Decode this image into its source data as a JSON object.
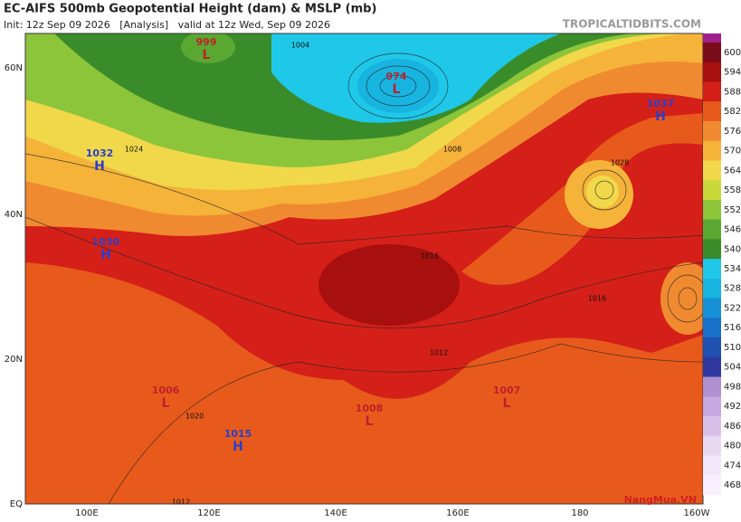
{
  "header": {
    "title": "EC-AIFS 500mb Geopotential Height (dam) & MSLP (mb)",
    "subtitle": "Init: 12z Sep 09 2026   [Analysis]   valid at 12z Wed, Sep 09 2026",
    "brand": "TROPICALTIDBITS.COM"
  },
  "map": {
    "lat_labels": [
      "60N",
      "40N",
      "20N",
      "EQ"
    ],
    "lon_labels": [
      "100E",
      "120E",
      "140E",
      "160E",
      "180",
      "160W"
    ],
    "centers": [
      {
        "value": "999",
        "letter": "L"
      },
      {
        "value": "974",
        "letter": "L"
      },
      {
        "value": "1037",
        "letter": "H"
      },
      {
        "value": "1032",
        "letter": "H"
      },
      {
        "value": "1030",
        "letter": "H"
      },
      {
        "value": "1006",
        "letter": "L"
      },
      {
        "value": "1008",
        "letter": "L"
      },
      {
        "value": "1007",
        "letter": "L"
      },
      {
        "value": "1015",
        "letter": "H"
      }
    ],
    "isobar_labels": [
      "1004",
      "1008",
      "1012",
      "1016",
      "1020",
      "1024",
      "1028",
      "1016",
      "1012"
    ]
  },
  "colorbar": {
    "top_color": "#a0208c",
    "labels": [
      600,
      594,
      588,
      582,
      576,
      570,
      564,
      558,
      552,
      546,
      540,
      534,
      528,
      522,
      516,
      510,
      504,
      498,
      492,
      486,
      480,
      474,
      468
    ],
    "colors": [
      "#7a0c1a",
      "#a80f0f",
      "#d42018",
      "#e85a1c",
      "#f08a30",
      "#f5b33a",
      "#f0d84a",
      "#c8d83a",
      "#8cc43a",
      "#5aa832",
      "#3a8c2a",
      "#1fc8e8",
      "#18b4e0",
      "#1890d8",
      "#1870c8",
      "#2050b0",
      "#3038a0",
      "#b090d0",
      "#c8a8e0",
      "#d8c0e8",
      "#e8d8f0",
      "#f0e8f8",
      "#f8f0ff"
    ]
  },
  "watermark": "NangMua.VN"
}
